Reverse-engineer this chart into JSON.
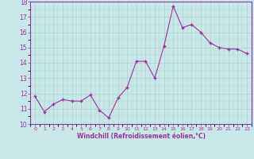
{
  "x": [
    0,
    1,
    2,
    3,
    4,
    5,
    6,
    7,
    8,
    9,
    10,
    11,
    12,
    13,
    14,
    15,
    16,
    17,
    18,
    19,
    20,
    21,
    22,
    23
  ],
  "y": [
    11.8,
    10.8,
    11.3,
    11.6,
    11.5,
    11.5,
    11.9,
    10.9,
    10.4,
    11.7,
    12.4,
    14.1,
    14.1,
    13.0,
    15.1,
    17.7,
    16.3,
    16.5,
    16.0,
    15.3,
    15.0,
    14.9,
    14.9,
    14.6
  ],
  "line_color": "#993399",
  "marker": "+",
  "marker_size": 3,
  "bg_color": "#c8e8e8",
  "grid_color": "#b0d0d0",
  "xlabel": "Windchill (Refroidissement éolien,°C)",
  "ylim": [
    10,
    18
  ],
  "xlim_min": -0.5,
  "xlim_max": 23.5,
  "yticks": [
    10,
    11,
    12,
    13,
    14,
    15,
    16,
    17,
    18
  ],
  "xticks": [
    0,
    1,
    2,
    3,
    4,
    5,
    6,
    7,
    8,
    9,
    10,
    11,
    12,
    13,
    14,
    15,
    16,
    17,
    18,
    19,
    20,
    21,
    22,
    23
  ],
  "axis_color": "#993399",
  "tick_color": "#993399",
  "label_color": "#993399"
}
